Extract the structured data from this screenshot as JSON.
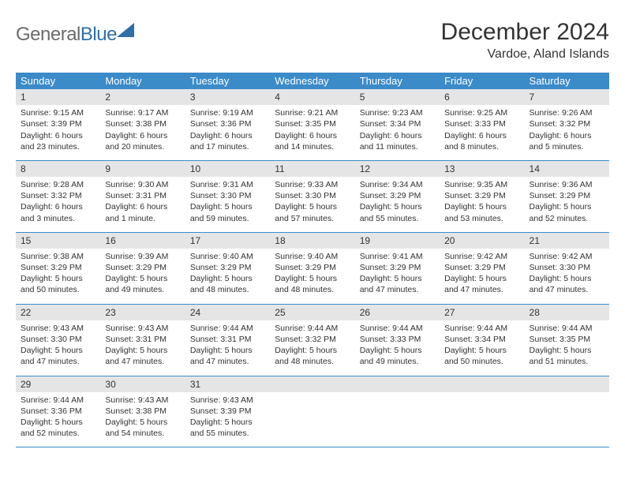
{
  "logo": {
    "text_left": "General",
    "text_right": "Blue"
  },
  "title": "December 2024",
  "location": "Vardoe, Aland Islands",
  "colors": {
    "header_bg": "#3b8bc9",
    "header_text": "#ffffff",
    "daynum_bg": "#e5e5e5",
    "body_text": "#333333",
    "logo_gray": "#6b6b6b",
    "logo_blue": "#2f6fa8",
    "row_border": "#3b8bc9"
  },
  "typography": {
    "title_fontsize": 30,
    "location_fontsize": 16,
    "header_fontsize": 13,
    "daynum_fontsize": 12,
    "cell_fontsize": 10.5
  },
  "weekdays": [
    "Sunday",
    "Monday",
    "Tuesday",
    "Wednesday",
    "Thursday",
    "Friday",
    "Saturday"
  ],
  "weeks": [
    [
      {
        "day": "1",
        "sunrise": "Sunrise: 9:15 AM",
        "sunset": "Sunset: 3:39 PM",
        "daylight": "Daylight: 6 hours and 23 minutes."
      },
      {
        "day": "2",
        "sunrise": "Sunrise: 9:17 AM",
        "sunset": "Sunset: 3:38 PM",
        "daylight": "Daylight: 6 hours and 20 minutes."
      },
      {
        "day": "3",
        "sunrise": "Sunrise: 9:19 AM",
        "sunset": "Sunset: 3:36 PM",
        "daylight": "Daylight: 6 hours and 17 minutes."
      },
      {
        "day": "4",
        "sunrise": "Sunrise: 9:21 AM",
        "sunset": "Sunset: 3:35 PM",
        "daylight": "Daylight: 6 hours and 14 minutes."
      },
      {
        "day": "5",
        "sunrise": "Sunrise: 9:23 AM",
        "sunset": "Sunset: 3:34 PM",
        "daylight": "Daylight: 6 hours and 11 minutes."
      },
      {
        "day": "6",
        "sunrise": "Sunrise: 9:25 AM",
        "sunset": "Sunset: 3:33 PM",
        "daylight": "Daylight: 6 hours and 8 minutes."
      },
      {
        "day": "7",
        "sunrise": "Sunrise: 9:26 AM",
        "sunset": "Sunset: 3:32 PM",
        "daylight": "Daylight: 6 hours and 5 minutes."
      }
    ],
    [
      {
        "day": "8",
        "sunrise": "Sunrise: 9:28 AM",
        "sunset": "Sunset: 3:32 PM",
        "daylight": "Daylight: 6 hours and 3 minutes."
      },
      {
        "day": "9",
        "sunrise": "Sunrise: 9:30 AM",
        "sunset": "Sunset: 3:31 PM",
        "daylight": "Daylight: 6 hours and 1 minute."
      },
      {
        "day": "10",
        "sunrise": "Sunrise: 9:31 AM",
        "sunset": "Sunset: 3:30 PM",
        "daylight": "Daylight: 5 hours and 59 minutes."
      },
      {
        "day": "11",
        "sunrise": "Sunrise: 9:33 AM",
        "sunset": "Sunset: 3:30 PM",
        "daylight": "Daylight: 5 hours and 57 minutes."
      },
      {
        "day": "12",
        "sunrise": "Sunrise: 9:34 AM",
        "sunset": "Sunset: 3:29 PM",
        "daylight": "Daylight: 5 hours and 55 minutes."
      },
      {
        "day": "13",
        "sunrise": "Sunrise: 9:35 AM",
        "sunset": "Sunset: 3:29 PM",
        "daylight": "Daylight: 5 hours and 53 minutes."
      },
      {
        "day": "14",
        "sunrise": "Sunrise: 9:36 AM",
        "sunset": "Sunset: 3:29 PM",
        "daylight": "Daylight: 5 hours and 52 minutes."
      }
    ],
    [
      {
        "day": "15",
        "sunrise": "Sunrise: 9:38 AM",
        "sunset": "Sunset: 3:29 PM",
        "daylight": "Daylight: 5 hours and 50 minutes."
      },
      {
        "day": "16",
        "sunrise": "Sunrise: 9:39 AM",
        "sunset": "Sunset: 3:29 PM",
        "daylight": "Daylight: 5 hours and 49 minutes."
      },
      {
        "day": "17",
        "sunrise": "Sunrise: 9:40 AM",
        "sunset": "Sunset: 3:29 PM",
        "daylight": "Daylight: 5 hours and 48 minutes."
      },
      {
        "day": "18",
        "sunrise": "Sunrise: 9:40 AM",
        "sunset": "Sunset: 3:29 PM",
        "daylight": "Daylight: 5 hours and 48 minutes."
      },
      {
        "day": "19",
        "sunrise": "Sunrise: 9:41 AM",
        "sunset": "Sunset: 3:29 PM",
        "daylight": "Daylight: 5 hours and 47 minutes."
      },
      {
        "day": "20",
        "sunrise": "Sunrise: 9:42 AM",
        "sunset": "Sunset: 3:29 PM",
        "daylight": "Daylight: 5 hours and 47 minutes."
      },
      {
        "day": "21",
        "sunrise": "Sunrise: 9:42 AM",
        "sunset": "Sunset: 3:30 PM",
        "daylight": "Daylight: 5 hours and 47 minutes."
      }
    ],
    [
      {
        "day": "22",
        "sunrise": "Sunrise: 9:43 AM",
        "sunset": "Sunset: 3:30 PM",
        "daylight": "Daylight: 5 hours and 47 minutes."
      },
      {
        "day": "23",
        "sunrise": "Sunrise: 9:43 AM",
        "sunset": "Sunset: 3:31 PM",
        "daylight": "Daylight: 5 hours and 47 minutes."
      },
      {
        "day": "24",
        "sunrise": "Sunrise: 9:44 AM",
        "sunset": "Sunset: 3:31 PM",
        "daylight": "Daylight: 5 hours and 47 minutes."
      },
      {
        "day": "25",
        "sunrise": "Sunrise: 9:44 AM",
        "sunset": "Sunset: 3:32 PM",
        "daylight": "Daylight: 5 hours and 48 minutes."
      },
      {
        "day": "26",
        "sunrise": "Sunrise: 9:44 AM",
        "sunset": "Sunset: 3:33 PM",
        "daylight": "Daylight: 5 hours and 49 minutes."
      },
      {
        "day": "27",
        "sunrise": "Sunrise: 9:44 AM",
        "sunset": "Sunset: 3:34 PM",
        "daylight": "Daylight: 5 hours and 50 minutes."
      },
      {
        "day": "28",
        "sunrise": "Sunrise: 9:44 AM",
        "sunset": "Sunset: 3:35 PM",
        "daylight": "Daylight: 5 hours and 51 minutes."
      }
    ],
    [
      {
        "day": "29",
        "sunrise": "Sunrise: 9:44 AM",
        "sunset": "Sunset: 3:36 PM",
        "daylight": "Daylight: 5 hours and 52 minutes."
      },
      {
        "day": "30",
        "sunrise": "Sunrise: 9:43 AM",
        "sunset": "Sunset: 3:38 PM",
        "daylight": "Daylight: 5 hours and 54 minutes."
      },
      {
        "day": "31",
        "sunrise": "Sunrise: 9:43 AM",
        "sunset": "Sunset: 3:39 PM",
        "daylight": "Daylight: 5 hours and 55 minutes."
      },
      {
        "empty": true
      },
      {
        "empty": true
      },
      {
        "empty": true
      },
      {
        "empty": true
      }
    ]
  ]
}
